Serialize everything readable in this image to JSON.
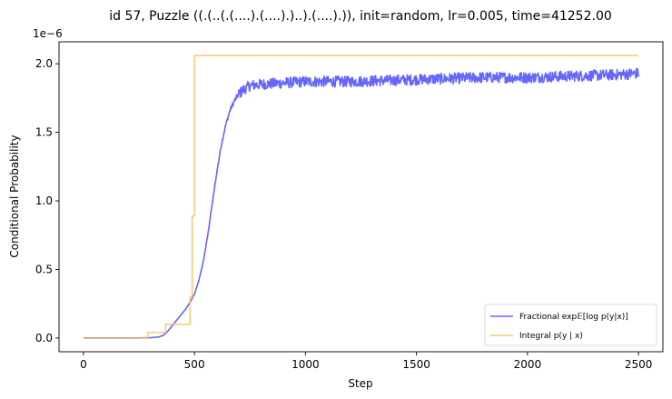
{
  "chart_data": {
    "type": "line",
    "title": "id 57, Puzzle ((.(..(.(....).(....).)..).(....).)), init=random, lr=0.005, time=41252.00",
    "xlabel": "Step",
    "ylabel": "Conditional Probability",
    "y_offset_label": "1e−6",
    "xlim": [
      -110,
      2610
    ],
    "ylim": [
      -0.1,
      2.16
    ],
    "x_ticks": [
      0,
      500,
      1000,
      1500,
      2000,
      2500
    ],
    "x_tick_labels": [
      "0",
      "500",
      "1000",
      "1500",
      "2000",
      "2500"
    ],
    "y_ticks": [
      0.0,
      0.5,
      1.0,
      1.5,
      2.0
    ],
    "y_tick_labels": [
      "0.0",
      "0.5",
      "1.0",
      "1.5",
      "2.0"
    ],
    "grid": false,
    "legend_position": "lower-right",
    "series": [
      {
        "name": "Fractional exp𝔼[log p(y|x)]",
        "color": "#6666ff",
        "points": [
          [
            0,
            0.0
          ],
          [
            100,
            0.0
          ],
          [
            200,
            0.0
          ],
          [
            300,
            0.002
          ],
          [
            340,
            0.008
          ],
          [
            360,
            0.02
          ],
          [
            380,
            0.05
          ],
          [
            400,
            0.09
          ],
          [
            420,
            0.13
          ],
          [
            440,
            0.17
          ],
          [
            460,
            0.21
          ],
          [
            480,
            0.26
          ],
          [
            500,
            0.32
          ],
          [
            520,
            0.42
          ],
          [
            540,
            0.56
          ],
          [
            560,
            0.75
          ],
          [
            580,
            0.98
          ],
          [
            600,
            1.2
          ],
          [
            620,
            1.4
          ],
          [
            640,
            1.55
          ],
          [
            660,
            1.66
          ],
          [
            680,
            1.73
          ],
          [
            700,
            1.78
          ],
          [
            720,
            1.81
          ],
          [
            750,
            1.84
          ],
          [
            800,
            1.85
          ],
          [
            900,
            1.86
          ],
          [
            1000,
            1.87
          ],
          [
            1200,
            1.87
          ],
          [
            1400,
            1.88
          ],
          [
            1600,
            1.89
          ],
          [
            1800,
            1.9
          ],
          [
            2000,
            1.9
          ],
          [
            2200,
            1.91
          ],
          [
            2400,
            1.92
          ],
          [
            2500,
            1.93
          ]
        ],
        "noise_amplitude": 0.04,
        "noise_start": 700
      },
      {
        "name": "Integral p(y | x)",
        "color": "#ffbb55",
        "points": [
          [
            0,
            0.0
          ],
          [
            290,
            0.0
          ],
          [
            290,
            0.04
          ],
          [
            370,
            0.04
          ],
          [
            370,
            0.1
          ],
          [
            480,
            0.1
          ],
          [
            480,
            0.3
          ],
          [
            490,
            0.3
          ],
          [
            490,
            0.89
          ],
          [
            500,
            0.89
          ],
          [
            500,
            2.06
          ],
          [
            2500,
            2.06
          ]
        ]
      }
    ]
  }
}
